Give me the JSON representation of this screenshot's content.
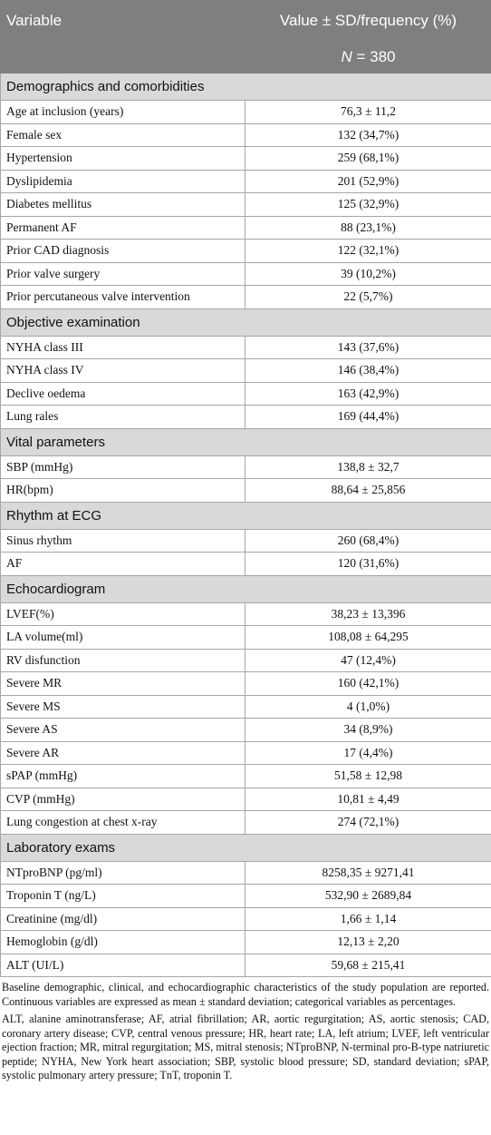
{
  "header": {
    "columns": [
      "Variable",
      "Value ± SD/frequency (%)"
    ],
    "n": {
      "italic": "N",
      "text": " = 380"
    }
  },
  "sections": [
    {
      "title": "Demographics and comorbidities",
      "rows": [
        [
          "Age at inclusion (years)",
          "76,3 ± 11,2"
        ],
        [
          "Female sex",
          "132 (34,7%)"
        ],
        [
          "Hypertension",
          "259 (68,1%)"
        ],
        [
          "Dyslipidemia",
          "201 (52,9%)"
        ],
        [
          "Diabetes mellitus",
          "125 (32,9%)"
        ],
        [
          "Permanent AF",
          "88 (23,1%)"
        ],
        [
          "Prior CAD diagnosis",
          "122 (32,1%)"
        ],
        [
          "Prior valve surgery",
          "39 (10,2%)"
        ],
        [
          "Prior percutaneous valve intervention",
          "22 (5,7%)"
        ]
      ]
    },
    {
      "title": "Objective examination",
      "rows": [
        [
          "NYHA class III",
          "143 (37,6%)"
        ],
        [
          "NYHA class IV",
          "146 (38,4%)"
        ],
        [
          "Declive oedema",
          "163 (42,9%)"
        ],
        [
          "Lung rales",
          "169 (44,4%)"
        ]
      ]
    },
    {
      "title": "Vital parameters",
      "rows": [
        [
          "SBP (mmHg)",
          "138,8 ± 32,7"
        ],
        [
          "HR(bpm)",
          "88,64 ± 25,856"
        ]
      ]
    },
    {
      "title": "Rhythm at ECG",
      "rows": [
        [
          "Sinus rhythm",
          "260 (68,4%)"
        ],
        [
          "AF",
          "120 (31,6%)"
        ]
      ]
    },
    {
      "title": "Echocardiogram",
      "rows": [
        [
          "LVEF(%)",
          "38,23 ± 13,396"
        ],
        [
          "LA volume(ml)",
          "108,08 ± 64,295"
        ],
        [
          "RV disfunction",
          "47 (12,4%)"
        ],
        [
          "Severe MR",
          "160 (42,1%)"
        ],
        [
          "Severe MS",
          "4 (1,0%)"
        ],
        [
          "Severe AS",
          "34 (8,9%)"
        ],
        [
          "Severe AR",
          "17 (4,4%)"
        ],
        [
          "sPAP (mmHg)",
          "51,58 ± 12,98"
        ],
        [
          "CVP (mmHg)",
          "10,81 ± 4,49"
        ],
        [
          "Lung congestion at chest x-ray",
          "274 (72,1%)"
        ]
      ]
    },
    {
      "title": "Laboratory exams",
      "rows": [
        [
          "NTproBNP (pg/ml)",
          "8258,35 ± 9271,41"
        ],
        [
          "Troponin T (ng/L)",
          "532,90 ± 2689,84"
        ],
        [
          "Creatinine (mg/dl)",
          "1,66 ± 1,14"
        ],
        [
          "Hemoglobin (g/dl)",
          "12,13 ± 2,20"
        ],
        [
          "ALT (UI/L)",
          "59,68 ± 215,41"
        ]
      ]
    }
  ],
  "footnotes": [
    "Baseline demographic, clinical, and echocardiographic characteristics of the study population are reported. Continuous variables are expressed as mean ± standard deviation; categorical variables as percentages.",
    "ALT, alanine aminotransferase; AF, atrial fibrillation; AR, aortic regurgitation; AS, aortic stenosis; CAD, coronary artery disease; CVP, central venous pressure; HR, heart rate; LA, left atrium; LVEF, left ventricular ejection fraction; MR, mitral regurgitation; MS, mitral stenosis; NTproBNP, N-terminal pro-B-type natriuretic peptide; NYHA, New York heart association; SBP, systolic blood pressure; SD, standard deviation; sPAP, systolic pulmonary artery pressure; TnT, troponin T."
  ]
}
